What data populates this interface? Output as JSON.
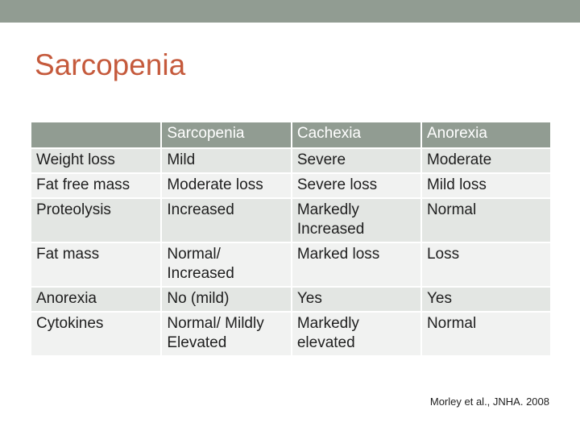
{
  "title": "Sarcopenia",
  "table": {
    "headers": [
      "",
      "Sarcopenia",
      "Cachexia",
      "Anorexia"
    ],
    "rows": [
      [
        "Weight loss",
        "Mild",
        "Severe",
        "Moderate"
      ],
      [
        "Fat free mass",
        "Moderate loss",
        "Severe loss",
        "Mild loss"
      ],
      [
        "Proteolysis",
        "Increased",
        "Markedly Increased",
        "Normal"
      ],
      [
        "Fat mass",
        "Normal/ Increased",
        "Marked loss",
        "Loss"
      ],
      [
        "Anorexia",
        "No (mild)",
        "Yes",
        "Yes"
      ],
      [
        "Cytokines",
        "Normal/ Mildly Elevated",
        "Markedly elevated",
        "Normal"
      ]
    ]
  },
  "citation": "Morley et al., JNHA. 2008",
  "colors": {
    "band": "#919c92",
    "title": "#c55a3c",
    "row_dark": "#e3e6e3",
    "row_light": "#f1f2f1"
  }
}
